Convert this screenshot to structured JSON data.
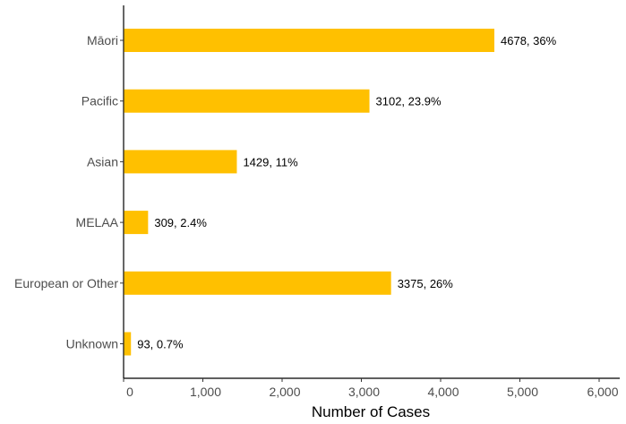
{
  "chart_data": {
    "type": "bar",
    "orientation": "horizontal",
    "categories": [
      "Māori",
      "Pacific",
      "Asian",
      "MELAA",
      "European or Other",
      "Unknown"
    ],
    "values": [
      4678,
      3102,
      1429,
      309,
      3375,
      93
    ],
    "data_labels": [
      "4678, 36%",
      "3102, 23.9%",
      "1429, 11%",
      "309, 2.4%",
      "3375, 26%",
      "93, 0.7%"
    ],
    "xlabel": "Number of Cases",
    "ylabel": "",
    "title": "",
    "xlim": [
      0,
      6000
    ],
    "xticks": [
      0,
      1000,
      2000,
      3000,
      4000,
      5000,
      6000
    ],
    "xtick_labels": [
      "0",
      "1,000",
      "2,000",
      "3,000",
      "4,000",
      "5,000",
      "6,000"
    ],
    "bar_color": "#FFC000",
    "grid": false,
    "legend": "none"
  }
}
